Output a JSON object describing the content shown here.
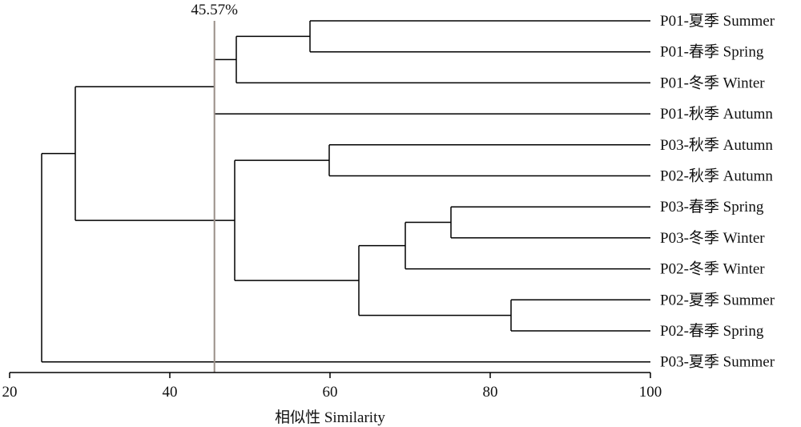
{
  "chart_data": {
    "type": "dendrogram",
    "xlabel": "相似性 Similarity",
    "xlim": [
      20,
      100
    ],
    "xticks": [
      20,
      40,
      60,
      80,
      100
    ],
    "cutoff": {
      "value": 45.57,
      "label": "45.57%"
    },
    "leaves": [
      "P01-夏季 Summer",
      "P01-春季 Spring",
      "P01-冬季 Winter",
      "P01-秋季 Autumn",
      "P03-秋季 Autumn",
      "P02-秋季 Autumn",
      "P03-春季 Spring",
      "P03-冬季 Winter",
      "P02-冬季 Winter",
      "P02-夏季 Summer",
      "P02-春季 Spring",
      "P03-夏季 Summer"
    ],
    "merges": [
      {
        "id": "m1",
        "a": "L0",
        "b": "L1",
        "similarity": 57.5
      },
      {
        "id": "m2",
        "a": "m1",
        "b": "L2",
        "similarity": 48.3
      },
      {
        "id": "m3",
        "a": "m2",
        "b": "L3",
        "similarity": 45.57
      },
      {
        "id": "m4",
        "a": "L4",
        "b": "L5",
        "similarity": 59.9
      },
      {
        "id": "m5",
        "a": "L6",
        "b": "L7",
        "similarity": 75.1
      },
      {
        "id": "m6",
        "a": "m5",
        "b": "L8",
        "similarity": 69.4
      },
      {
        "id": "m7",
        "a": "L9",
        "b": "L10",
        "similarity": 82.6
      },
      {
        "id": "m8",
        "a": "m6",
        "b": "m7",
        "similarity": 63.6
      },
      {
        "id": "m9",
        "a": "m4",
        "b": "m8",
        "similarity": 48.1
      },
      {
        "id": "m10",
        "a": "m3",
        "b": "m9",
        "similarity": 28.2
      },
      {
        "id": "m11",
        "a": "m10",
        "b": "L11",
        "similarity": 24.0
      }
    ]
  },
  "colors": {
    "lines": "#000000",
    "cutoff_line": "#9a8f88",
    "text": "#111111"
  }
}
